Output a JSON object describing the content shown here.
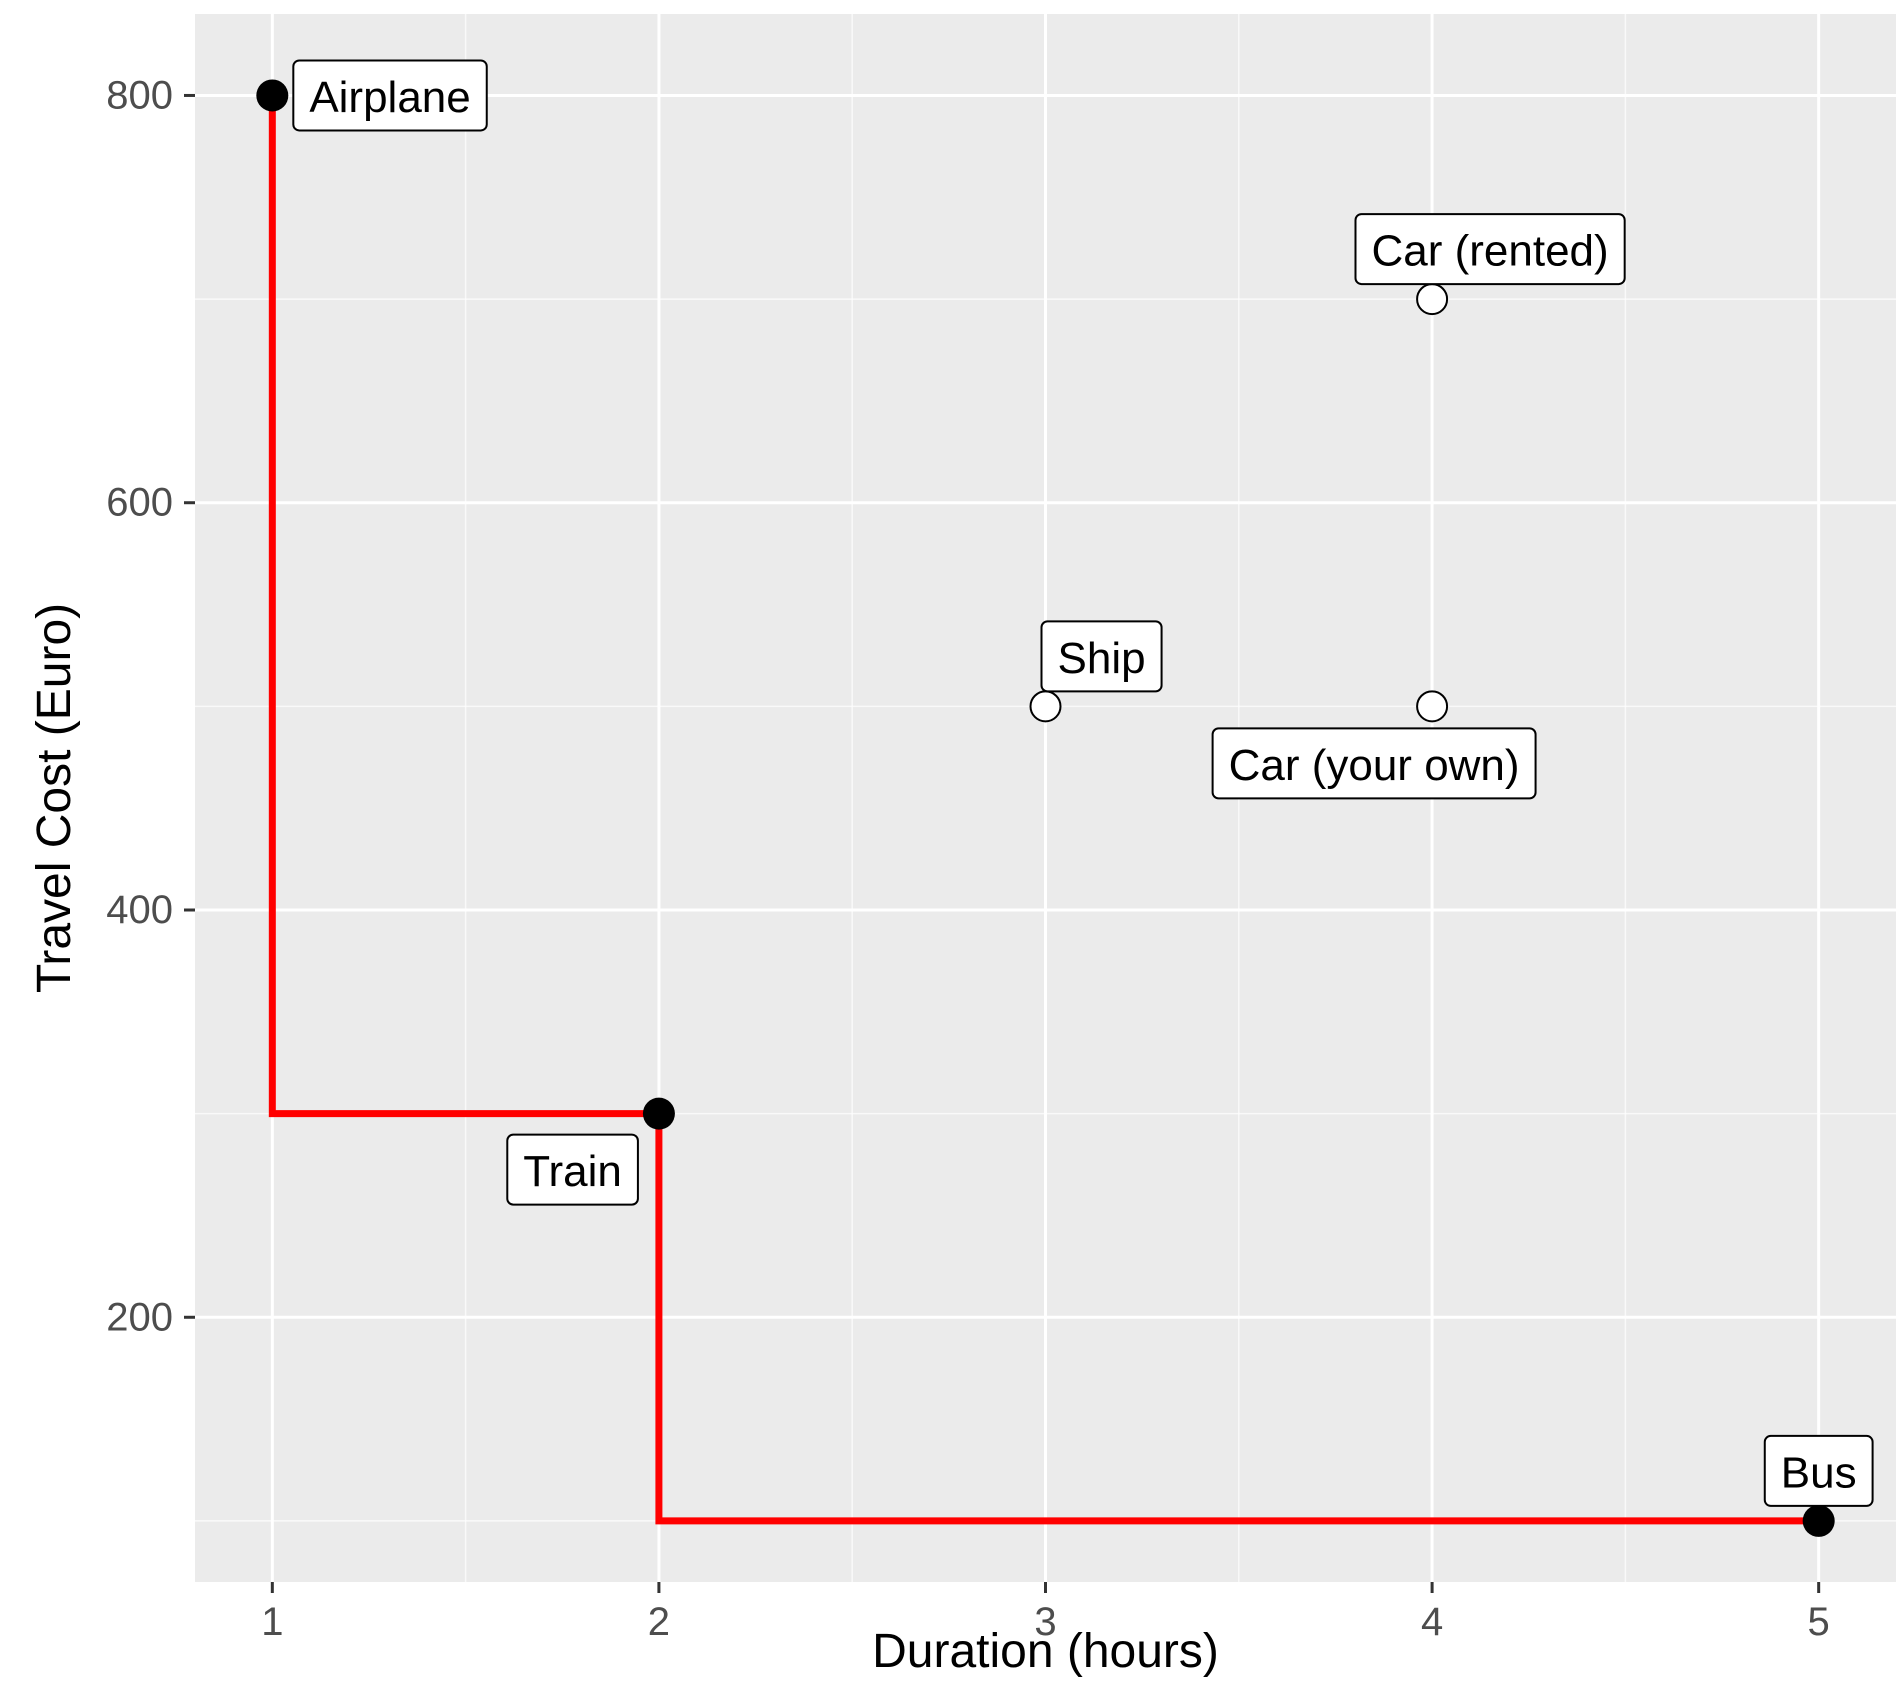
{
  "chart_data": {
    "type": "scatter",
    "xlabel": "Duration (hours)",
    "ylabel": "Travel Cost (Euro)",
    "xlim": [
      0.8,
      5.2
    ],
    "ylim": [
      70,
      840
    ],
    "x_ticks": [
      1,
      2,
      3,
      4,
      5
    ],
    "y_ticks": [
      200,
      400,
      600,
      800
    ],
    "x_tick_labels": [
      "1",
      "2",
      "3",
      "4",
      "5"
    ],
    "y_tick_labels": [
      "200",
      "400",
      "600",
      "800"
    ],
    "grid": true,
    "points": [
      {
        "label": "Airplane",
        "x": 1,
        "y": 800,
        "pareto": true
      },
      {
        "label": "Train",
        "x": 2,
        "y": 300,
        "pareto": true
      },
      {
        "label": "Bus",
        "x": 5,
        "y": 100,
        "pareto": true
      },
      {
        "label": "Ship",
        "x": 3,
        "y": 500,
        "pareto": false
      },
      {
        "label": "Car (your own)",
        "x": 4,
        "y": 500,
        "pareto": false
      },
      {
        "label": "Car (rented)",
        "x": 4,
        "y": 700,
        "pareto": false
      }
    ],
    "frontier": {
      "type": "step",
      "x": [
        1,
        2,
        5
      ],
      "y": [
        800,
        300,
        100
      ],
      "color": "#ff0000"
    },
    "colors": {
      "panel_background": "#ebebeb",
      "grid_major": "#ffffff",
      "frontier_line": "#ff0000",
      "point_filled": "#000000",
      "point_open_fill": "#ffffff"
    }
  }
}
